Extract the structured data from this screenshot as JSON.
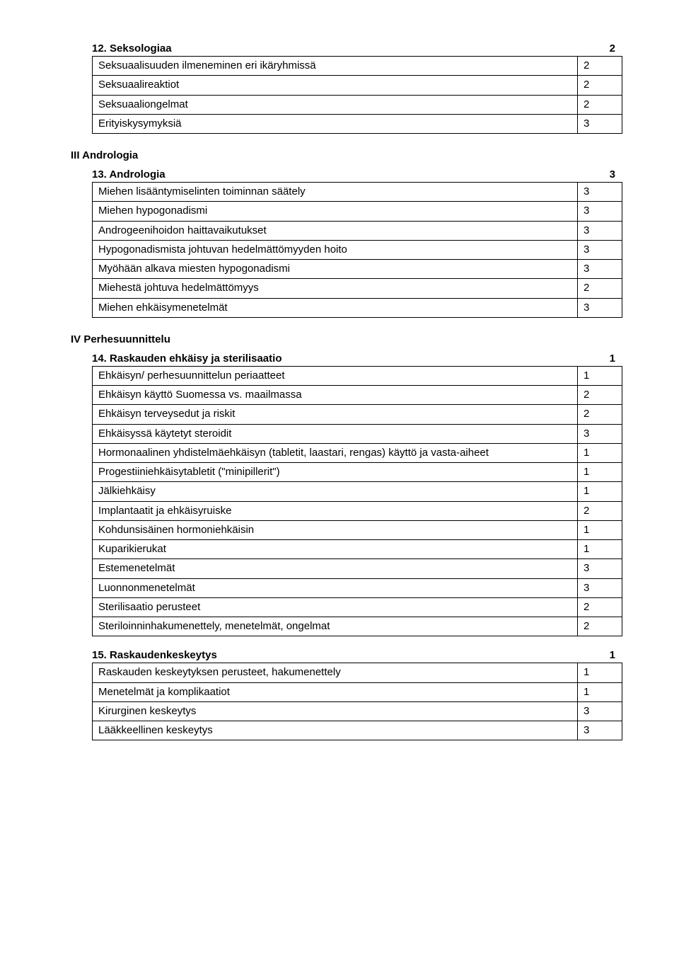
{
  "topic12": {
    "title": "12. Seksologiaa",
    "num": "2",
    "rows": [
      {
        "label": "Seksuaalisuuden ilmeneminen eri ikäryhmissä",
        "val": "2"
      },
      {
        "label": "Seksuaalireaktiot",
        "val": "2"
      },
      {
        "label": "Seksuaaliongelmat",
        "val": "2"
      },
      {
        "label": "Erityiskysymyksiä",
        "val": "3"
      }
    ]
  },
  "section3": {
    "title": "III Andrologia"
  },
  "topic13": {
    "title": "13. Andrologia",
    "num": "3",
    "rows": [
      {
        "label": "Miehen lisääntymiselinten toiminnan säätely",
        "val": "3"
      },
      {
        "label": "Miehen hypogonadismi",
        "val": "3"
      },
      {
        "label": "Androgeenihoidon haittavaikutukset",
        "val": "3"
      },
      {
        "label": "Hypogonadismista johtuvan hedelmättömyyden hoito",
        "val": "3"
      },
      {
        "label": "Myöhään alkava miesten hypogonadismi",
        "val": "3"
      },
      {
        "label": "Miehestä johtuva hedelmättömyys",
        "val": "2"
      },
      {
        "label": "Miehen ehkäisymenetelmät",
        "val": "3"
      }
    ]
  },
  "section4": {
    "title": "IV Perhesuunnittelu"
  },
  "topic14": {
    "title": "14. Raskauden ehkäisy ja sterilisaatio",
    "num": "1",
    "rows": [
      {
        "label": "Ehkäisyn/ perhesuunnittelun periaatteet",
        "val": "1"
      },
      {
        "label": "Ehkäisyn käyttö Suomessa vs. maailmassa",
        "val": "2"
      },
      {
        "label": "Ehkäisyn terveysedut ja riskit",
        "val": "2"
      },
      {
        "label": "Ehkäisyssä käytetyt steroidit",
        "val": "3"
      },
      {
        "label": "Hormonaalinen yhdistelmäehkäisyn (tabletit, laastari, rengas) käyttö ja vasta-aiheet",
        "val": "1"
      },
      {
        "label": "Progestiiniehkäisytabletit (\"minipillerit\")",
        "val": "1"
      },
      {
        "label": "Jälkiehkäisy",
        "val": "1"
      },
      {
        "label": "Implantaatit ja ehkäisyruiske",
        "val": "2"
      },
      {
        "label": "Kohdunsisäinen hormoniehkäisin",
        "val": "1"
      },
      {
        "label": "Kuparikierukat",
        "val": "1"
      },
      {
        "label": "Estemenetelmät",
        "val": "3"
      },
      {
        "label": "Luonnonmenetelmät",
        "val": "3"
      },
      {
        "label": "Sterilisaatio perusteet",
        "val": "2"
      },
      {
        "label": "Steriloinninhakumenettely, menetelmät, ongelmat",
        "val": "2"
      }
    ]
  },
  "topic15": {
    "title": "15. Raskaudenkeskeytys",
    "num": "1",
    "rows": [
      {
        "label": "Raskauden keskeytyksen perusteet, hakumenettely",
        "val": "1"
      },
      {
        "label": "Menetelmät ja komplikaatiot",
        "val": "1"
      },
      {
        "label": "Kirurginen keskeytys",
        "val": "3"
      },
      {
        "label": "Lääkkeellinen keskeytys",
        "val": "3"
      }
    ]
  }
}
